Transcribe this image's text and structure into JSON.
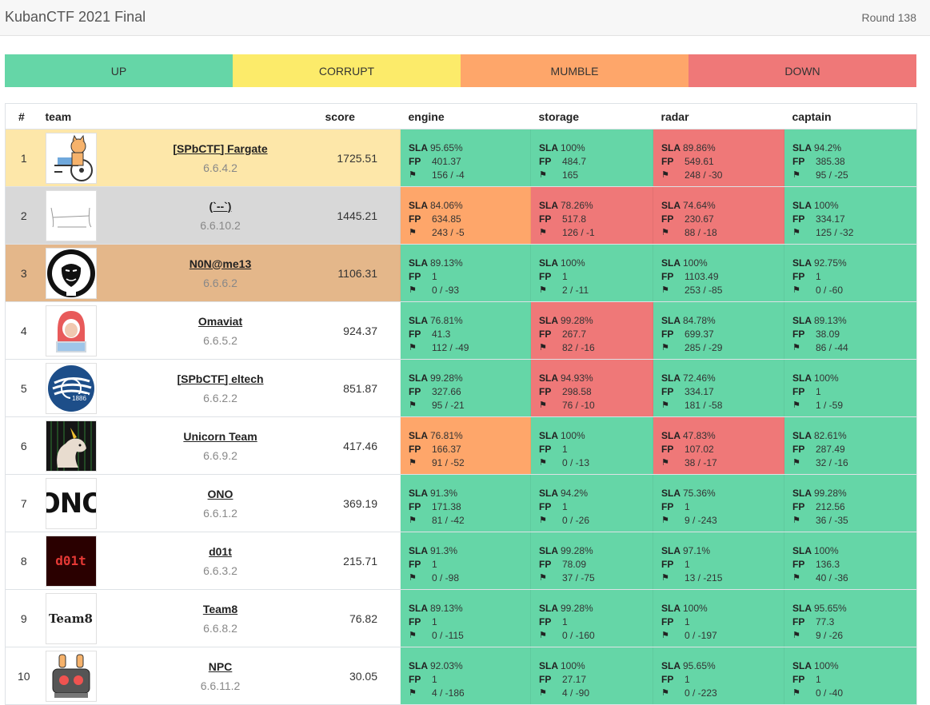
{
  "header": {
    "title": "KubanCTF 2021 Final",
    "round": "Round 138"
  },
  "colors": {
    "up": "#65d6a7",
    "corrupt": "#fceb6a",
    "mumble": "#fea66a",
    "down": "#ef7878",
    "first": "#fde7a9",
    "second": "#d8d8d8",
    "third": "#e4b78a"
  },
  "legend": [
    {
      "label": "UP",
      "status": "up"
    },
    {
      "label": "CORRUPT",
      "status": "corrupt"
    },
    {
      "label": "MUMBLE",
      "status": "mumble"
    },
    {
      "label": "DOWN",
      "status": "down"
    }
  ],
  "columns": {
    "num": "#",
    "team": "team",
    "score": "score",
    "services": [
      "engine",
      "storage",
      "radar",
      "captain"
    ]
  },
  "labels": {
    "sla": "SLA",
    "fp": "FP",
    "flag_icon": "⚑"
  },
  "teams": [
    {
      "place": "1",
      "name": "[SPbCTF] Fargate",
      "ip": "6.6.4.2",
      "score": "1725.51",
      "logo": "wheelchair-cat-logo",
      "row_color": "first",
      "services": [
        {
          "status": "up",
          "sla": "95.65%",
          "fp": "401.37",
          "flags": "156 / -4"
        },
        {
          "status": "up",
          "sla": "100%",
          "fp": "484.7",
          "flags": "165"
        },
        {
          "status": "down",
          "sla": "89.86%",
          "fp": "549.61",
          "flags": "248 / -30"
        },
        {
          "status": "up",
          "sla": "94.2%",
          "fp": "385.38",
          "flags": "95 / -25"
        }
      ]
    },
    {
      "place": "2",
      "name": "(`--`)",
      "ip": "6.6.10.2",
      "score": "1445.21",
      "logo": "sketch-logo",
      "row_color": "second",
      "services": [
        {
          "status": "mumble",
          "sla": "84.06%",
          "fp": "634.85",
          "flags": "243 / -5"
        },
        {
          "status": "down",
          "sla": "78.26%",
          "fp": "517.8",
          "flags": "126 / -1"
        },
        {
          "status": "down",
          "sla": "74.64%",
          "fp": "230.67",
          "flags": "88 / -18"
        },
        {
          "status": "up",
          "sla": "100%",
          "fp": "334.17",
          "flags": "125 / -32"
        }
      ]
    },
    {
      "place": "3",
      "name": "N0N@me13",
      "ip": "6.6.6.2",
      "score": "1106.31",
      "logo": "anonymous-mask-logo",
      "row_color": "third",
      "services": [
        {
          "status": "up",
          "sla": "89.13%",
          "fp": "1",
          "flags": "0 / -93"
        },
        {
          "status": "up",
          "sla": "100%",
          "fp": "1",
          "flags": "2 / -11"
        },
        {
          "status": "up",
          "sla": "100%",
          "fp": "1103.49",
          "flags": "253 / -85"
        },
        {
          "status": "up",
          "sla": "92.75%",
          "fp": "1",
          "flags": "0 / -60"
        }
      ]
    },
    {
      "place": "4",
      "name": "Omaviat",
      "ip": "6.6.5.2",
      "score": "924.37",
      "logo": "hooded-hacker-logo",
      "row_color": "",
      "services": [
        {
          "status": "up",
          "sla": "76.81%",
          "fp": "41.3",
          "flags": "112 / -49"
        },
        {
          "status": "down",
          "sla": "99.28%",
          "fp": "267.7",
          "flags": "82 / -16"
        },
        {
          "status": "up",
          "sla": "84.78%",
          "fp": "699.37",
          "flags": "285 / -29"
        },
        {
          "status": "up",
          "sla": "89.13%",
          "fp": "38.09",
          "flags": "86 / -44"
        }
      ]
    },
    {
      "place": "5",
      "name": "[SPbCTF] eltech",
      "ip": "6.6.2.2",
      "score": "851.87",
      "logo": "eltech-1886-logo",
      "row_color": "",
      "services": [
        {
          "status": "up",
          "sla": "99.28%",
          "fp": "327.66",
          "flags": "95 / -21"
        },
        {
          "status": "down",
          "sla": "94.93%",
          "fp": "298.58",
          "flags": "76 / -10"
        },
        {
          "status": "up",
          "sla": "72.46%",
          "fp": "334.17",
          "flags": "181 / -58"
        },
        {
          "status": "up",
          "sla": "100%",
          "fp": "1",
          "flags": "1 / -59"
        }
      ]
    },
    {
      "place": "6",
      "name": "Unicorn Team",
      "ip": "6.6.9.2",
      "score": "417.46",
      "logo": "unicorn-logo",
      "row_color": "",
      "services": [
        {
          "status": "mumble",
          "sla": "76.81%",
          "fp": "166.37",
          "flags": "91 / -52"
        },
        {
          "status": "up",
          "sla": "100%",
          "fp": "1",
          "flags": "0 / -13"
        },
        {
          "status": "down",
          "sla": "47.83%",
          "fp": "107.02",
          "flags": "38 / -17"
        },
        {
          "status": "up",
          "sla": "82.61%",
          "fp": "287.49",
          "flags": "32 / -16"
        }
      ]
    },
    {
      "place": "7",
      "name": "ONO",
      "ip": "6.6.1.2",
      "score": "369.19",
      "logo": "ono-logo",
      "logo_text": "ONO",
      "row_color": "",
      "services": [
        {
          "status": "up",
          "sla": "91.3%",
          "fp": "171.38",
          "flags": "81 / -42"
        },
        {
          "status": "up",
          "sla": "94.2%",
          "fp": "1",
          "flags": "0 / -26"
        },
        {
          "status": "up",
          "sla": "75.36%",
          "fp": "1",
          "flags": "9 / -243"
        },
        {
          "status": "up",
          "sla": "99.28%",
          "fp": "212.56",
          "flags": "36 / -35"
        }
      ]
    },
    {
      "place": "8",
      "name": "d01t",
      "ip": "6.6.3.2",
      "score": "215.71",
      "logo": "d01t-logo",
      "logo_text": "d01t",
      "row_color": "",
      "services": [
        {
          "status": "up",
          "sla": "91.3%",
          "fp": "1",
          "flags": "0 / -98"
        },
        {
          "status": "up",
          "sla": "99.28%",
          "fp": "78.09",
          "flags": "37 / -75"
        },
        {
          "status": "up",
          "sla": "97.1%",
          "fp": "1",
          "flags": "13 / -215"
        },
        {
          "status": "up",
          "sla": "100%",
          "fp": "136.3",
          "flags": "40 / -36"
        }
      ]
    },
    {
      "place": "9",
      "name": "Team8",
      "ip": "6.6.8.2",
      "score": "76.82",
      "logo": "team8-logo",
      "logo_text": "Team8",
      "row_color": "",
      "services": [
        {
          "status": "up",
          "sla": "89.13%",
          "fp": "1",
          "flags": "0 / -115"
        },
        {
          "status": "up",
          "sla": "99.28%",
          "fp": "1",
          "flags": "0 / -160"
        },
        {
          "status": "up",
          "sla": "100%",
          "fp": "1",
          "flags": "0 / -197"
        },
        {
          "status": "up",
          "sla": "95.65%",
          "fp": "77.3",
          "flags": "9 / -26"
        }
      ]
    },
    {
      "place": "10",
      "name": "NPC",
      "ip": "6.6.11.2",
      "score": "30.05",
      "logo": "robot-logo",
      "row_color": "",
      "services": [
        {
          "status": "up",
          "sla": "92.03%",
          "fp": "1",
          "flags": "4 / -186"
        },
        {
          "status": "up",
          "sla": "100%",
          "fp": "27.17",
          "flags": "4 / -90"
        },
        {
          "status": "up",
          "sla": "95.65%",
          "fp": "1",
          "flags": "0 / -223"
        },
        {
          "status": "up",
          "sla": "100%",
          "fp": "1",
          "flags": "0 / -40"
        }
      ]
    }
  ]
}
